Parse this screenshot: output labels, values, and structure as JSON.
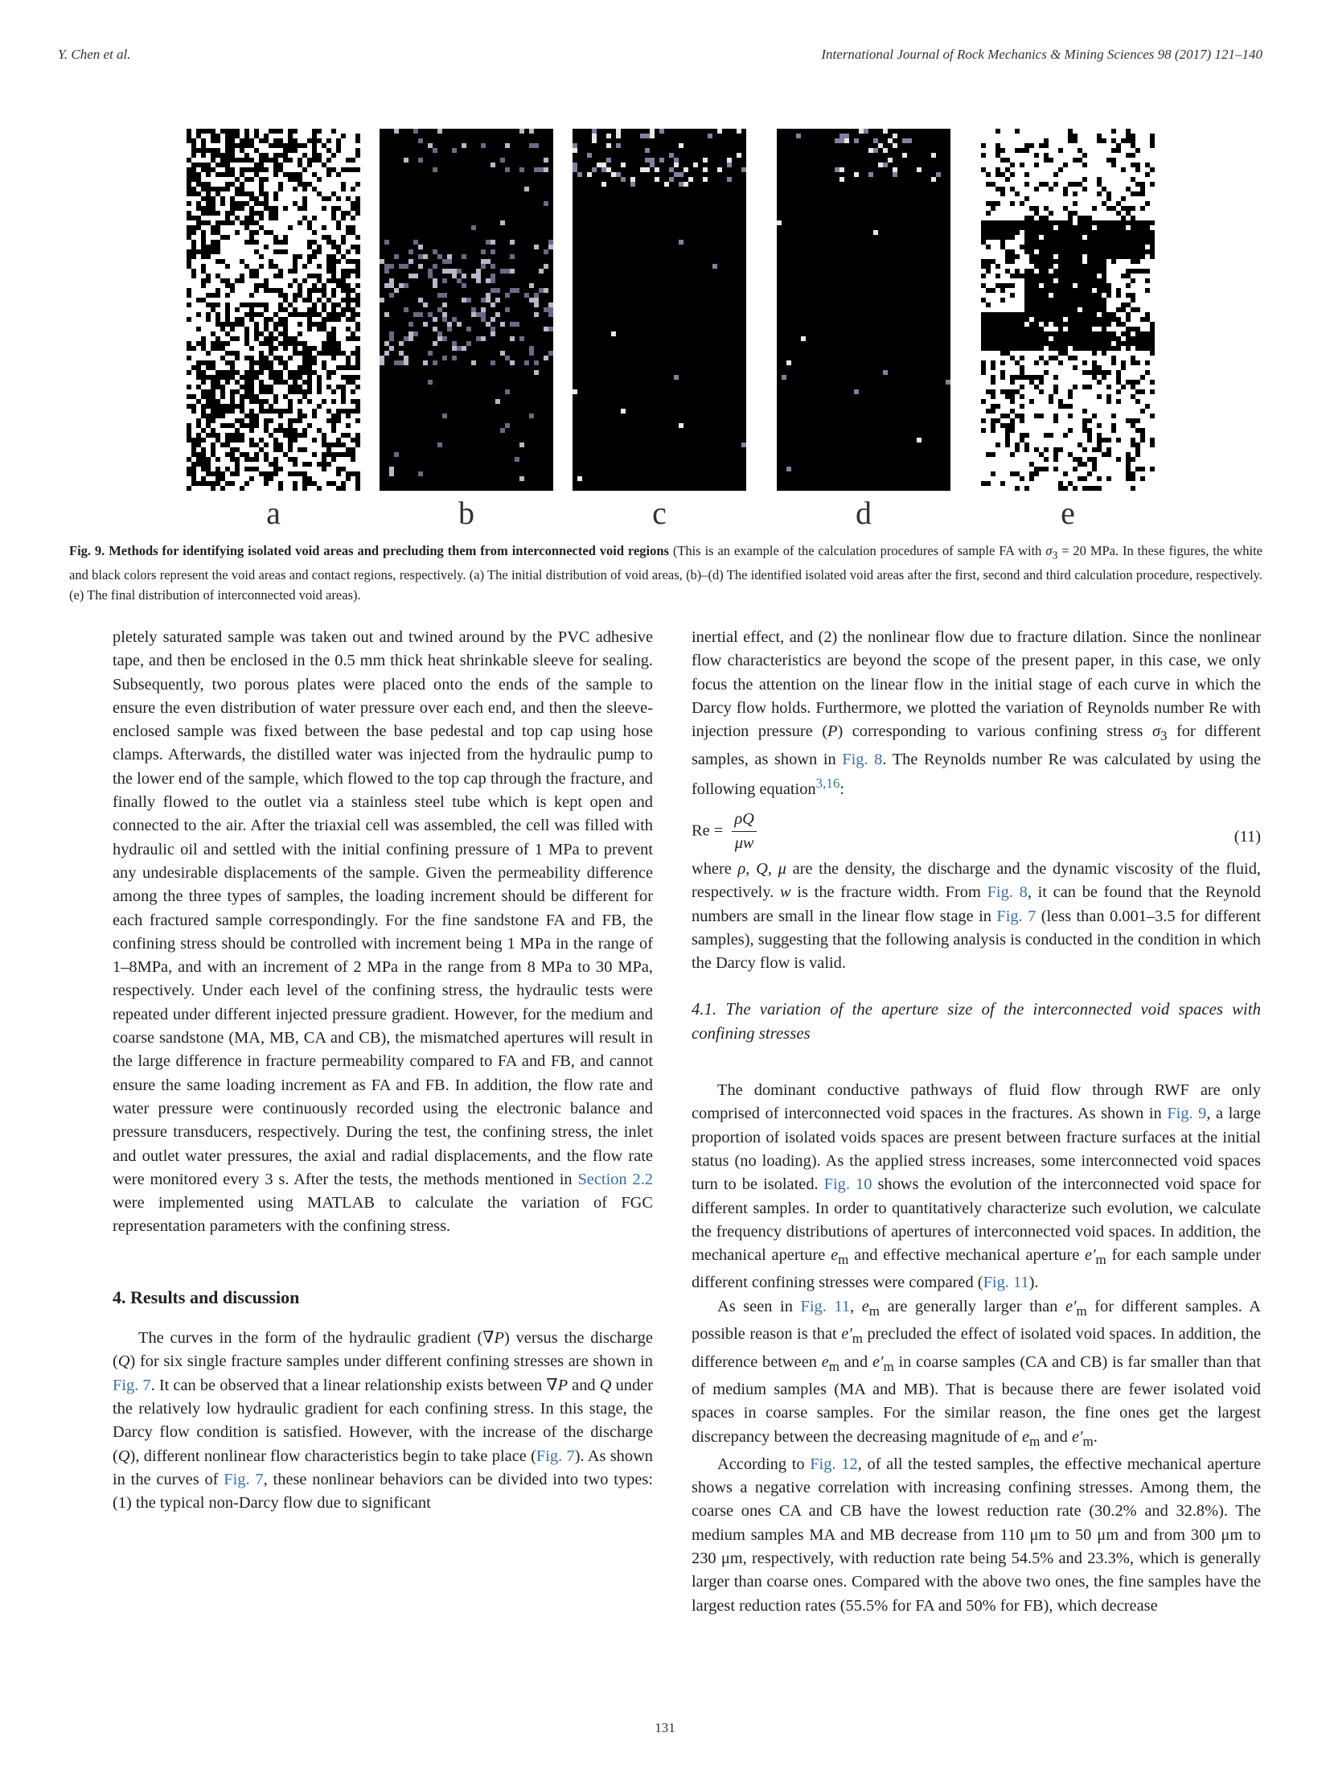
{
  "header": {
    "left": "Y. Chen et al.",
    "right": "International Journal of Rock Mechanics & Mining Sciences 98 (2017) 121–140"
  },
  "figure": {
    "panels": [
      {
        "label": "a"
      },
      {
        "label": "b"
      },
      {
        "label": "c"
      },
      {
        "label": "d"
      },
      {
        "label": "e"
      }
    ],
    "caption_title": "Fig. 9. Methods for identifying isolated void areas and precluding them from interconnected void regions",
    "caption_body_1": " (This is an example of the calculation procedures of sample FA with ",
    "caption_sigma": "σ",
    "caption_sigma_sub": "3",
    "caption_body_2": " = 20 MPa. In these figures, the white and black colors represent the void areas and contact regions, respectively. (a) The initial distribution of void areas, (b)–(d) The identified isolated void areas after the first, second and third calculation procedure, respectively. (e) The final distribution of interconnected void areas)."
  },
  "left_col": {
    "p1_a": "pletely saturated sample was taken out and twined around by the PVC adhesive tape, and then be enclosed in the 0.5 mm thick heat shrinkable sleeve for sealing. Subsequently, two porous plates were placed onto the ends of the sample to ensure the even distribution of water pressure over each end, and then the sleeve-enclosed sample was fixed between the base pedestal and top cap using hose clamps. Afterwards, the distilled water was injected from the hydraulic pump to the lower end of the sample, which flowed to the top cap through the fracture, and finally flowed to the outlet via a stainless steel tube which is kept open and connected to the air. After the triaxial cell was assembled, the cell was filled with hydraulic oil and settled with the initial confining pressure of 1 MPa to prevent any undesirable displacements of the sample. Given the permeability difference among the three types of samples, the loading increment should be different for each fractured sample correspondingly. For the fine sandstone FA and FB, the confining stress should be controlled with increment being 1 MPa in the range of 1–8MPa, and with an increment of 2 MPa in the range from 8 MPa to 30 MPa, respectively. Under each level of the confining stress, the hydraulic tests were repeated under different injected pressure gradient. However, for the medium and coarse sandstone (MA, MB, CA and CB), the mismatched apertures will result in the large difference in fracture permeability compared to FA and FB, and cannot ensure the same loading increment as FA and FB. In addition, the flow rate and water pressure were continuously recorded using the electronic balance and pressure transducers, respectively. During the test, the confining stress, the inlet and outlet water pressures, the axial and radial displacements, and the flow rate were monitored every 3 s. After the tests, the methods mentioned in ",
    "p1_ref": "Section 2.2",
    "p1_b": " were implemented using MATLAB to calculate the variation of FGC representation parameters with the confining stress.",
    "section_heading": "4.  Results and discussion",
    "p2_a": "The curves in the form of the hydraulic gradient (∇",
    "p2_P": "P",
    "p2_b": ") versus the discharge (",
    "p2_Q": "Q",
    "p2_c": ") for six single fracture samples under different confining stresses are shown in ",
    "p2_ref1": "Fig. 7",
    "p2_d": ". It can be observed that a linear relationship exists between ∇",
    "p2_P2": "P",
    "p2_e": " and ",
    "p2_Q2": "Q",
    "p2_f": " under the relatively low hydraulic gradient for each confining stress. In this stage, the Darcy flow condition is satisfied. However, with the increase of the discharge (",
    "p2_Q3": "Q",
    "p2_g": "), different nonlinear flow characteristics begin to take place (",
    "p2_ref2": "Fig. 7",
    "p2_h": "). As shown in the curves of ",
    "p2_ref3": "Fig. 7",
    "p2_i": ", these nonlinear behaviors can be divided into two types: (1) the typical non-Darcy flow due to significant"
  },
  "right_col": {
    "p1_a": "inertial effect, and (2) the nonlinear flow due to fracture dilation. Since the nonlinear flow characteristics are beyond the scope of the present paper, in this case, we only focus the attention on the linear flow in the initial stage of each curve in which the Darcy flow holds. Furthermore, we plotted the variation of Reynolds number Re with injection pressure (",
    "p1_P": "P",
    "p1_b": ") corresponding to various confining stress ",
    "p1_sigma": "σ",
    "p1_sigma_sub": "3",
    "p1_c": " for different samples, as shown in ",
    "p1_ref": "Fig. 8",
    "p1_d": ". The Reynolds number Re was calculated by using the following equation",
    "p1_sup": "3,16",
    "p1_e": ":",
    "eq_lhs": "Re =",
    "eq_num_top": "ρQ",
    "eq_den": "μw",
    "eq_number": "(11)",
    "p2_a": "where ",
    "p2_vars": "ρ, Q, μ",
    "p2_b": " are the density, the discharge and the dynamic viscosity of the fluid, respectively. ",
    "p2_w": "w",
    "p2_c": " is the fracture width. From ",
    "p2_ref1": "Fig. 8",
    "p2_d": ", it can be found that the Reynold numbers are small in the linear flow stage in ",
    "p2_ref2": "Fig. 7",
    "p2_e": " (less than 0.001–3.5 for different samples), suggesting that the following analysis is conducted in the condition in which the Darcy flow is valid.",
    "subsection_heading": "4.1.  The variation of the aperture size of the interconnected void spaces with confining stresses",
    "p3_a": "The dominant conductive pathways of fluid flow through RWF are only comprised of interconnected void spaces in the fractures. As shown in ",
    "p3_ref1": "Fig. 9",
    "p3_b": ", a large proportion of isolated voids spaces are present between fracture surfaces at the initial status (no loading). As the applied stress increases, some interconnected void spaces turn to be isolated. ",
    "p3_ref2": "Fig. 10",
    "p3_c": " shows the evolution of the interconnected void space for different samples. In order to quantitatively characterize such evolution, we calculate the frequency distributions of apertures of interconnected void spaces. In addition, the mechanical aperture ",
    "p3_em": "e",
    "p3_em_sub": "m",
    "p3_d": " and effective mechanical aperture ",
    "p3_epm": "e′",
    "p3_epm_sub": "m",
    "p3_e": " for each sample under different confining stresses were compared (",
    "p3_ref3": "Fig. 11",
    "p3_f": ").",
    "p4_a": "As seen in ",
    "p4_ref": "Fig. 11",
    "p4_b": ", ",
    "p4_e1": "e",
    "p4_e1_sub": "m",
    "p4_c": " are generally larger than ",
    "p4_e2": "e′",
    "p4_e2_sub": "m",
    "p4_d": " for different samples. A possible reason is that ",
    "p4_e3": "e′",
    "p4_e3_sub": "m",
    "p4_e": " precluded the effect of isolated void spaces. In addition, the difference between ",
    "p4_e4": "e",
    "p4_e4_sub": "m",
    "p4_f": " and ",
    "p4_e5": "e′",
    "p4_e5_sub": "m",
    "p4_g": " in coarse samples (CA and CB) is far smaller than that of medium samples (MA and MB). That is because there are fewer isolated void spaces in coarse samples. For the similar reason, the fine ones get the largest discrepancy between the decreasing magnitude of ",
    "p4_e6": "e",
    "p4_e6_sub": "m",
    "p4_h": " and ",
    "p4_e7": "e′",
    "p4_e7_sub": "m",
    "p4_i": ".",
    "p5_a": "According to ",
    "p5_ref": "Fig. 12",
    "p5_b": ", of all the tested samples, the effective mechanical aperture shows a negative correlation with increasing confining stresses. Among them, the coarse ones CA and CB have the lowest reduction rate (30.2% and 32.8%). The medium samples MA and MB decrease from 110 μm to 50 μm and from 300 μm to 230 μm, respectively, with reduction rate being 54.5% and 23.3%, which is generally larger than coarse ones. Compared with the above two ones, the fine samples have the largest reduction rates (55.5% for FA and 50% for FB), which decrease"
  },
  "footer": {
    "page_number": "131"
  },
  "colors": {
    "link": "#3a6fa8",
    "text": "#222222"
  }
}
